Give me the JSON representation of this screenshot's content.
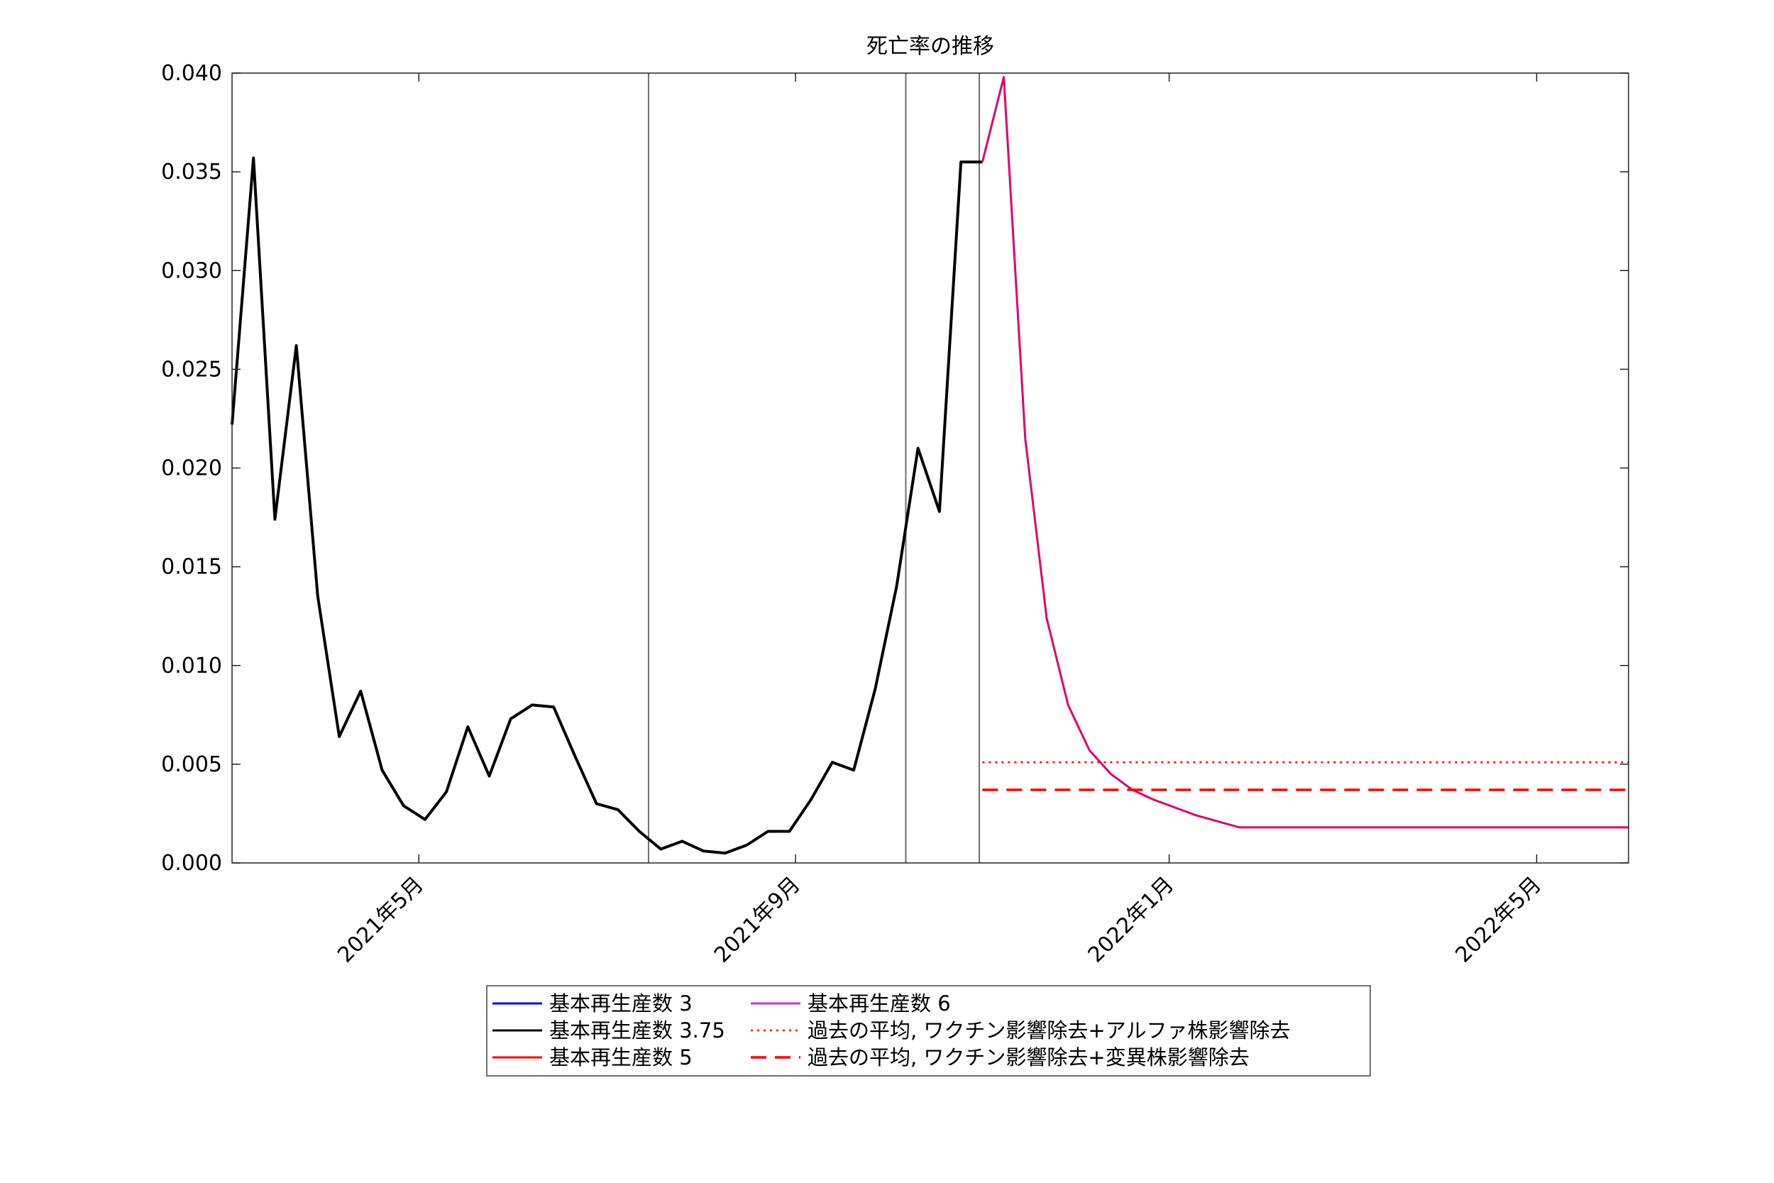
{
  "chart_data": {
    "type": "line",
    "title": "死亡率の推移",
    "xlabel": "",
    "ylabel": "",
    "x_start": "2021-03-01",
    "x_end": "2022-05-31",
    "ylim": [
      0,
      0.04
    ],
    "y_ticks": [
      "0.000",
      "0.005",
      "0.010",
      "0.015",
      "0.020",
      "0.025",
      "0.030",
      "0.035",
      "0.040"
    ],
    "x_ticks": [
      {
        "date": "2021-05-01",
        "label": "2021年5月"
      },
      {
        "date": "2021-09-01",
        "label": "2021年9月"
      },
      {
        "date": "2022-01-01",
        "label": "2022年1月"
      },
      {
        "date": "2022-05-01",
        "label": "2022年5月"
      }
    ],
    "grid": false,
    "vertical_lines": [
      "2021-07-15",
      "2021-10-07",
      "2021-10-31"
    ],
    "legend_position": "bottom-center",
    "colors": {
      "r3": "#0000ff",
      "r375": "#000000",
      "r5": "#ff0000",
      "r6": "#cc33cc",
      "forecast": "#e0006e",
      "alpha_avg": "#ff0000",
      "variant_avg": "#ff0000",
      "vline": "#6e6e6e"
    },
    "series": [
      {
        "name": "基本再生産数 3.75",
        "key": "actual",
        "color": "#000000",
        "dates": [
          "2021-03-01",
          "2021-03-08",
          "2021-03-15",
          "2021-03-22",
          "2021-03-29",
          "2021-04-05",
          "2021-04-12",
          "2021-04-19",
          "2021-04-26",
          "2021-05-03",
          "2021-05-10",
          "2021-05-17",
          "2021-05-24",
          "2021-05-31",
          "2021-06-07",
          "2021-06-14",
          "2021-06-21",
          "2021-06-28",
          "2021-07-05",
          "2021-07-12",
          "2021-07-19",
          "2021-07-26",
          "2021-08-02",
          "2021-08-09",
          "2021-08-16",
          "2021-08-23",
          "2021-08-30",
          "2021-09-06",
          "2021-09-13",
          "2021-09-20",
          "2021-09-27",
          "2021-10-04",
          "2021-10-11",
          "2021-10-18",
          "2021-10-25",
          "2021-11-01"
        ],
        "values": [
          0.0222,
          0.0357,
          0.0174,
          0.0262,
          0.0135,
          0.0064,
          0.0087,
          0.0047,
          0.0029,
          0.0022,
          0.0036,
          0.0069,
          0.0044,
          0.0073,
          0.008,
          0.0079,
          0.0054,
          0.003,
          0.0027,
          0.0016,
          0.0007,
          0.0011,
          0.0006,
          0.0005,
          0.0009,
          0.0016,
          0.0016,
          0.0032,
          0.0051,
          0.0047,
          0.0088,
          0.014,
          0.021,
          0.0178,
          0.0355,
          0.0355
        ]
      },
      {
        "name": "forecast",
        "key": "forecast",
        "color": "#e0006e",
        "dates": [
          "2021-11-01",
          "2021-11-08",
          "2021-11-15",
          "2021-11-22",
          "2021-11-29",
          "2021-12-06",
          "2021-12-13",
          "2021-12-20",
          "2021-12-27",
          "2022-01-03",
          "2022-01-10",
          "2022-01-17",
          "2022-01-24",
          "2022-01-31",
          "2022-05-31"
        ],
        "values": [
          0.0355,
          0.0398,
          0.0215,
          0.0124,
          0.008,
          0.0057,
          0.0045,
          0.0037,
          0.0032,
          0.0028,
          0.0024,
          0.0021,
          0.0018,
          0.0018,
          0.0018
        ]
      },
      {
        "name": "過去の平均, ワクチン影響除去+アルファ株影響除去",
        "key": "alpha_avg",
        "color": "#ff0000",
        "style": "dotted",
        "dates": [
          "2021-11-01",
          "2022-05-31"
        ],
        "values": [
          0.0051,
          0.0051
        ]
      },
      {
        "name": "過去の平均, ワクチン影響除去+変異株影響除去",
        "key": "variant_avg",
        "color": "#ff0000",
        "style": "dashed",
        "dates": [
          "2021-11-01",
          "2022-05-31"
        ],
        "values": [
          0.0037,
          0.0037
        ]
      }
    ],
    "legend": [
      {
        "label": "基本再生産数 3",
        "color": "#0000ff",
        "style": "solid"
      },
      {
        "label": "基本再生産数 3.75",
        "color": "#000000",
        "style": "solid"
      },
      {
        "label": "基本再生産数 5",
        "color": "#ff0000",
        "style": "solid"
      },
      {
        "label": "基本再生産数 6",
        "color": "#cc33cc",
        "style": "solid"
      },
      {
        "label": "過去の平均, ワクチン影響除去+アルファ株影響除去",
        "color": "#ff0000",
        "style": "dotted"
      },
      {
        "label": "過去の平均, ワクチン影響除去+変異株影響除去",
        "color": "#ff0000",
        "style": "dashed"
      }
    ]
  }
}
